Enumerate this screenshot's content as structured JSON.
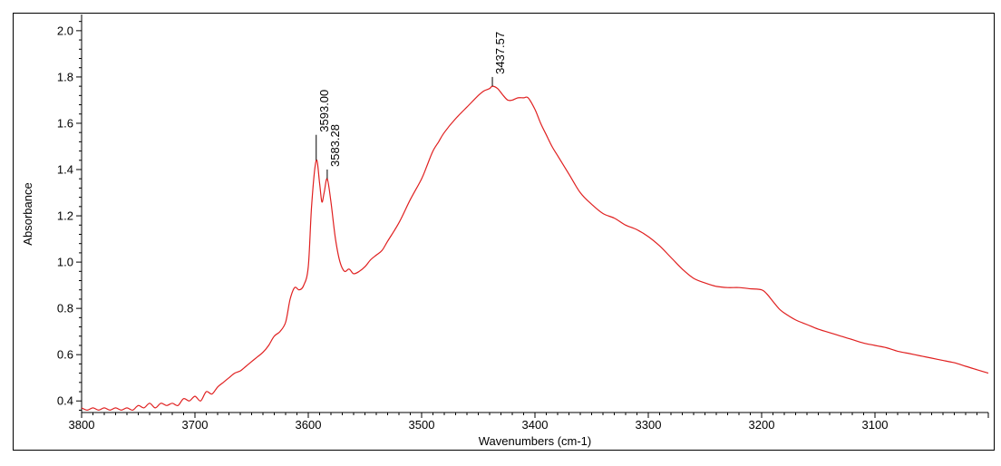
{
  "chart_data": {
    "type": "line",
    "title": "",
    "xlabel": "Wavenumbers (cm-1)",
    "ylabel": "Absorbance",
    "xlim": [
      3800,
      3000
    ],
    "ylim": [
      0.35,
      2.07
    ],
    "x_reversed": true,
    "grid": false,
    "legend": "none",
    "x_ticks": [
      3800,
      3700,
      3600,
      3500,
      3400,
      3300,
      3200,
      3100
    ],
    "x_tick_labels": [
      "3800",
      "3700",
      "3600",
      "3500",
      "3400",
      "3300",
      "3200",
      "3100"
    ],
    "y_ticks": [
      0.4,
      0.6,
      0.8,
      1.0,
      1.2,
      1.4,
      1.6,
      1.8,
      2.0
    ],
    "y_tick_labels": [
      "0.4",
      "0.6",
      "0.8",
      "1.0",
      "1.2",
      "1.4",
      "1.6",
      "1.8",
      "2.0"
    ],
    "series": [
      {
        "color": "#e02020",
        "x": [
          3800,
          3795,
          3790,
          3785,
          3780,
          3775,
          3770,
          3765,
          3760,
          3755,
          3750,
          3745,
          3740,
          3735,
          3730,
          3725,
          3720,
          3715,
          3710,
          3705,
          3700,
          3695,
          3690,
          3685,
          3680,
          3675,
          3670,
          3665,
          3660,
          3655,
          3650,
          3645,
          3640,
          3635,
          3630,
          3625,
          3620,
          3616,
          3612,
          3608,
          3604,
          3600,
          3597,
          3593,
          3590,
          3588,
          3586,
          3583.28,
          3580,
          3576,
          3572,
          3568,
          3564,
          3560,
          3555,
          3550,
          3545,
          3540,
          3535,
          3530,
          3520,
          3510,
          3500,
          3495,
          3490,
          3485,
          3480,
          3470,
          3460,
          3450,
          3445,
          3440,
          3437.57,
          3433,
          3428,
          3424,
          3420,
          3415,
          3410,
          3406,
          3400,
          3395,
          3390,
          3385,
          3380,
          3370,
          3360,
          3350,
          3340,
          3330,
          3320,
          3310,
          3300,
          3290,
          3280,
          3270,
          3260,
          3250,
          3240,
          3230,
          3220,
          3210,
          3200,
          3195,
          3190,
          3185,
          3180,
          3170,
          3160,
          3150,
          3140,
          3130,
          3120,
          3110,
          3100,
          3090,
          3080,
          3070,
          3060,
          3050,
          3040,
          3030,
          3020,
          3010,
          3000
        ],
        "y": [
          0.37,
          0.36,
          0.37,
          0.36,
          0.37,
          0.36,
          0.37,
          0.36,
          0.37,
          0.36,
          0.38,
          0.37,
          0.39,
          0.37,
          0.39,
          0.38,
          0.39,
          0.38,
          0.41,
          0.4,
          0.42,
          0.4,
          0.44,
          0.43,
          0.46,
          0.48,
          0.5,
          0.52,
          0.53,
          0.55,
          0.57,
          0.59,
          0.61,
          0.64,
          0.68,
          0.7,
          0.74,
          0.84,
          0.89,
          0.88,
          0.9,
          0.98,
          1.25,
          1.44,
          1.34,
          1.26,
          1.3,
          1.36,
          1.26,
          1.1,
          1.0,
          0.96,
          0.97,
          0.95,
          0.96,
          0.98,
          1.01,
          1.03,
          1.05,
          1.09,
          1.17,
          1.27,
          1.36,
          1.42,
          1.48,
          1.52,
          1.56,
          1.62,
          1.67,
          1.72,
          1.74,
          1.75,
          1.76,
          1.75,
          1.72,
          1.7,
          1.7,
          1.71,
          1.71,
          1.71,
          1.66,
          1.6,
          1.55,
          1.5,
          1.46,
          1.38,
          1.3,
          1.25,
          1.21,
          1.19,
          1.16,
          1.14,
          1.11,
          1.07,
          1.02,
          0.97,
          0.93,
          0.91,
          0.895,
          0.89,
          0.89,
          0.885,
          0.88,
          0.86,
          0.83,
          0.8,
          0.78,
          0.75,
          0.73,
          0.71,
          0.695,
          0.68,
          0.665,
          0.65,
          0.64,
          0.63,
          0.615,
          0.605,
          0.595,
          0.585,
          0.575,
          0.565,
          0.55,
          0.535,
          0.52
        ]
      }
    ],
    "annotations": [
      {
        "label": "3593.00",
        "x": 3593.0,
        "y": 1.44,
        "tip_y": 1.55
      },
      {
        "label": "3583.28",
        "x": 3583.28,
        "y": 1.36,
        "tip_y": 1.4
      },
      {
        "label": "3437.57",
        "x": 3437.57,
        "y": 1.76,
        "tip_y": 1.8
      }
    ]
  }
}
